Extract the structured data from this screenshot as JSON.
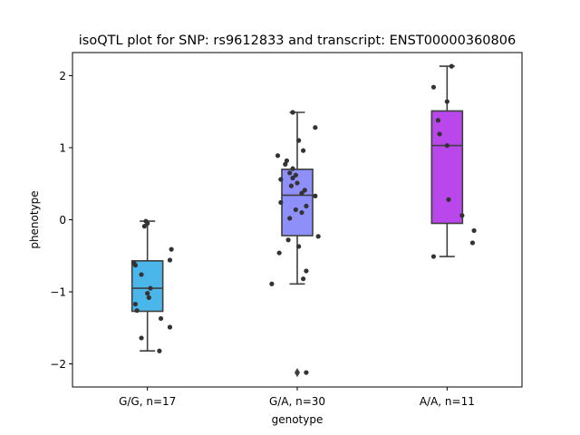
{
  "chart_data": {
    "type": "box",
    "title": "isoQTL plot for SNP: rs9612833 and transcript: ENST00000360806",
    "xlabel": "genotype",
    "ylabel": "phenotype",
    "ylim": [
      -2.32,
      2.32
    ],
    "yticks": [
      {
        "value": 2,
        "label": "2"
      },
      {
        "value": 1,
        "label": "1"
      },
      {
        "value": 0,
        "label": "0"
      },
      {
        "value": -1,
        "label": "−1"
      },
      {
        "value": -2,
        "label": "−2"
      }
    ],
    "grid": false,
    "categories": [
      "G/G, n=17",
      "G/A, n=30",
      "A/A, n=11"
    ],
    "boxes": [
      {
        "category": "G/G, n=17",
        "color": "#4bb6ea",
        "whisker_low": -1.82,
        "q1": -1.27,
        "median": -0.95,
        "q3": -0.57,
        "whisker_high": -0.02,
        "outliers": []
      },
      {
        "category": "G/A, n=30",
        "color": "#8f8ffa",
        "whisker_low": -0.89,
        "q1": -0.22,
        "median": 0.34,
        "q3": 0.7,
        "whisker_high": 1.49,
        "outliers": [
          -2.12
        ]
      },
      {
        "category": "A/A, n=11",
        "color": "#b947ec",
        "whisker_low": -0.51,
        "q1": -0.05,
        "median": 1.03,
        "q3": 1.51,
        "whisker_high": 2.13,
        "outliers": []
      }
    ],
    "points": [
      [
        {
          "dx": -0.01,
          "y": -0.02
        },
        {
          "dx": 0.0,
          "y": -0.05
        },
        {
          "dx": -0.02,
          "y": -0.09
        },
        {
          "dx": 0.16,
          "y": -0.41
        },
        {
          "dx": 0.15,
          "y": -0.56
        },
        {
          "dx": -0.09,
          "y": -0.6
        },
        {
          "dx": -0.08,
          "y": -0.63
        },
        {
          "dx": -0.04,
          "y": -0.76
        },
        {
          "dx": 0.02,
          "y": -0.95
        },
        {
          "dx": 0.0,
          "y": -1.02
        },
        {
          "dx": 0.01,
          "y": -1.08
        },
        {
          "dx": -0.08,
          "y": -1.17
        },
        {
          "dx": -0.07,
          "y": -1.26
        },
        {
          "dx": 0.09,
          "y": -1.37
        },
        {
          "dx": 0.15,
          "y": -1.49
        },
        {
          "dx": -0.04,
          "y": -1.64
        },
        {
          "dx": 0.08,
          "y": -1.82
        }
      ],
      [
        {
          "dx": -0.03,
          "y": 1.49
        },
        {
          "dx": 0.12,
          "y": 1.28
        },
        {
          "dx": 0.01,
          "y": 1.1
        },
        {
          "dx": 0.04,
          "y": 0.96
        },
        {
          "dx": -0.13,
          "y": 0.89
        },
        {
          "dx": -0.07,
          "y": 0.82
        },
        {
          "dx": -0.08,
          "y": 0.77
        },
        {
          "dx": -0.03,
          "y": 0.71
        },
        {
          "dx": -0.05,
          "y": 0.65
        },
        {
          "dx": -0.03,
          "y": 0.58
        },
        {
          "dx": -0.11,
          "y": 0.56
        },
        {
          "dx": 0.0,
          "y": 0.51
        },
        {
          "dx": -0.04,
          "y": 0.47
        },
        {
          "dx": 0.05,
          "y": 0.41
        },
        {
          "dx": 0.03,
          "y": 0.37
        },
        {
          "dx": 0.12,
          "y": 0.33
        },
        {
          "dx": -0.11,
          "y": 0.24
        },
        {
          "dx": 0.06,
          "y": 0.19
        },
        {
          "dx": -0.01,
          "y": 0.14
        },
        {
          "dx": 0.03,
          "y": 0.1
        },
        {
          "dx": -0.05,
          "y": 0.02
        },
        {
          "dx": 0.14,
          "y": -0.23
        },
        {
          "dx": -0.06,
          "y": -0.28
        },
        {
          "dx": 0.01,
          "y": -0.37
        },
        {
          "dx": -0.12,
          "y": -0.46
        },
        {
          "dx": 0.06,
          "y": -0.71
        },
        {
          "dx": 0.04,
          "y": -0.82
        },
        {
          "dx": -0.17,
          "y": -0.89
        },
        {
          "dx": 0.06,
          "y": -2.12
        },
        {
          "dx": -0.01,
          "y": 0.62
        }
      ],
      [
        {
          "dx": 0.03,
          "y": 2.13
        },
        {
          "dx": -0.09,
          "y": 1.84
        },
        {
          "dx": 0.0,
          "y": 1.64
        },
        {
          "dx": -0.06,
          "y": 1.38
        },
        {
          "dx": -0.05,
          "y": 1.19
        },
        {
          "dx": 0.0,
          "y": 1.03
        },
        {
          "dx": 0.01,
          "y": 0.28
        },
        {
          "dx": 0.1,
          "y": 0.06
        },
        {
          "dx": 0.18,
          "y": -0.15
        },
        {
          "dx": 0.17,
          "y": -0.32
        },
        {
          "dx": -0.09,
          "y": -0.51
        }
      ]
    ]
  }
}
